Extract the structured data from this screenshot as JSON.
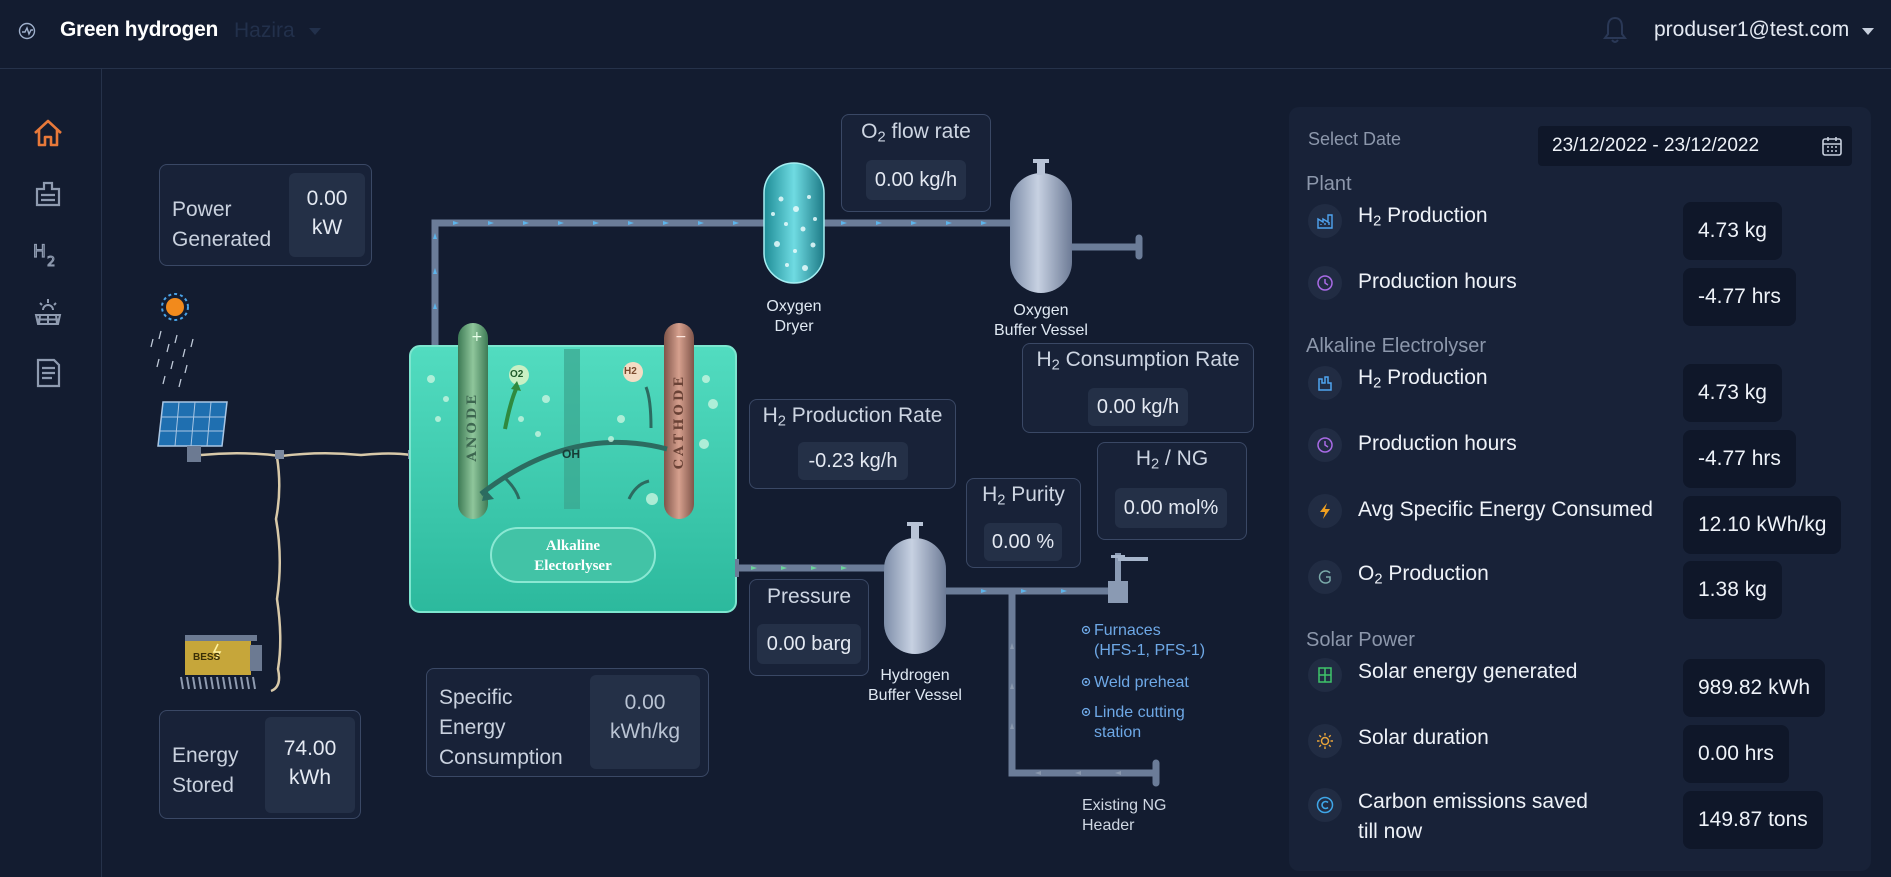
{
  "header": {
    "brand": "Green hydrogen",
    "site": "Hazira",
    "user": "produser1@test.com",
    "brand_icon": "gauge-icon",
    "bell_icon": "bell-icon"
  },
  "sidebar": {
    "items": [
      {
        "name": "home",
        "icon": "home-icon"
      },
      {
        "name": "factory",
        "icon": "factory-icon"
      },
      {
        "name": "h2",
        "icon": "h2-icon"
      },
      {
        "name": "solar",
        "icon": "solar-panel-icon"
      },
      {
        "name": "reports",
        "icon": "document-icon"
      }
    ]
  },
  "diagram": {
    "power_generated": {
      "label_1": "Power",
      "label_2": "Generated",
      "value": "0.00",
      "unit": "kW"
    },
    "energy_stored": {
      "label_1": "Energy",
      "label_2": "Stored",
      "value": "74.00",
      "unit": "kWh"
    },
    "o2_flow_rate": {
      "label_pre": "O",
      "label_sub": "2",
      "label_post": " flow rate",
      "value": "0.00 kg/h"
    },
    "h2_production_rate": {
      "label_pre": "H",
      "label_sub": "2",
      "label_post": " Production Rate",
      "value": "-0.23 kg/h"
    },
    "h2_consumption_rate": {
      "label_pre": "H",
      "label_sub": "2",
      "label_post": " Consumption Rate",
      "value": "0.00 kg/h"
    },
    "h2_ng": {
      "label_pre": "H",
      "label_sub": "2",
      "label_post": " / NG",
      "value": "0.00 mol%"
    },
    "h2_purity": {
      "label_pre": "H",
      "label_sub": "2",
      "label_post": " Purity",
      "value": "0.00 %"
    },
    "pressure": {
      "label": "Pressure",
      "value": "0.00 barg"
    },
    "specific_energy": {
      "label_1": "Specific",
      "label_2": "Energy",
      "label_3": "Consumption",
      "value": "0.00",
      "unit": "kWh/kg"
    },
    "oxygen_dryer": {
      "line_1": "Oxygen",
      "line_2": "Dryer"
    },
    "oxygen_buffer": {
      "line_1": "Oxygen",
      "line_2": "Buffer Vessel"
    },
    "hydrogen_buffer": {
      "line_1": "Hydrogen",
      "line_2": "Buffer Vessel"
    },
    "electrolyser": {
      "line_1": "Alkaline",
      "line_2": "Electorlyser",
      "anode": "ANODE",
      "cathode": "CATHODE",
      "oh": "OH",
      "o2": "O2",
      "h2": "H2"
    },
    "bess_label": "BESS",
    "consumers": [
      {
        "line_1": "Furnaces",
        "line_2": "(HFS-1, PFS-1)"
      },
      {
        "line_1": "Weld preheat",
        "line_2": ""
      },
      {
        "line_1": "Linde cutting",
        "line_2": "station"
      }
    ],
    "existing_ng": {
      "line_1": "Existing NG",
      "line_2": "Header"
    }
  },
  "right_panel": {
    "select_date_label": "Select Date",
    "date_range": "23/12/2022 - 23/12/2022",
    "calendar_icon": "calendar-icon",
    "sections": {
      "plant": "Plant",
      "alkaline": "Alkaline Electrolyser",
      "solar": "Solar Power"
    },
    "rows": {
      "plant_h2": {
        "pre": "H",
        "sub": "2",
        "post": " Production",
        "value": "4.73 kg",
        "icon": "factory-chart-icon"
      },
      "plant_hours": {
        "label": "Production hours",
        "value": "-4.77 hrs",
        "icon": "clock-icon"
      },
      "ae_h2": {
        "pre": "H",
        "sub": "2",
        "post": " Production",
        "value": "4.73 kg",
        "icon": "factory-icon"
      },
      "ae_hours": {
        "label": "Production hours",
        "value": "-4.77 hrs",
        "icon": "clock-icon"
      },
      "ae_energy": {
        "label": "Avg Specific Energy Consumed",
        "value": "12.10 kWh/kg",
        "icon": "lightning-icon"
      },
      "ae_o2": {
        "pre": "O",
        "sub": "2",
        "post": " Production",
        "value": "1.38 kg",
        "icon": "o2-icon"
      },
      "solar_energy": {
        "label": "Solar energy generated",
        "value": "989.82 kWh",
        "icon": "solar-panel-icon"
      },
      "solar_duration": {
        "label": "Solar duration",
        "value": "0.00 hrs",
        "icon": "sun-icon"
      },
      "carbon": {
        "label_1": "Carbon emissions saved",
        "label_2": "till now",
        "value": "149.87 tons",
        "icon": "carbon-icon"
      }
    }
  }
}
